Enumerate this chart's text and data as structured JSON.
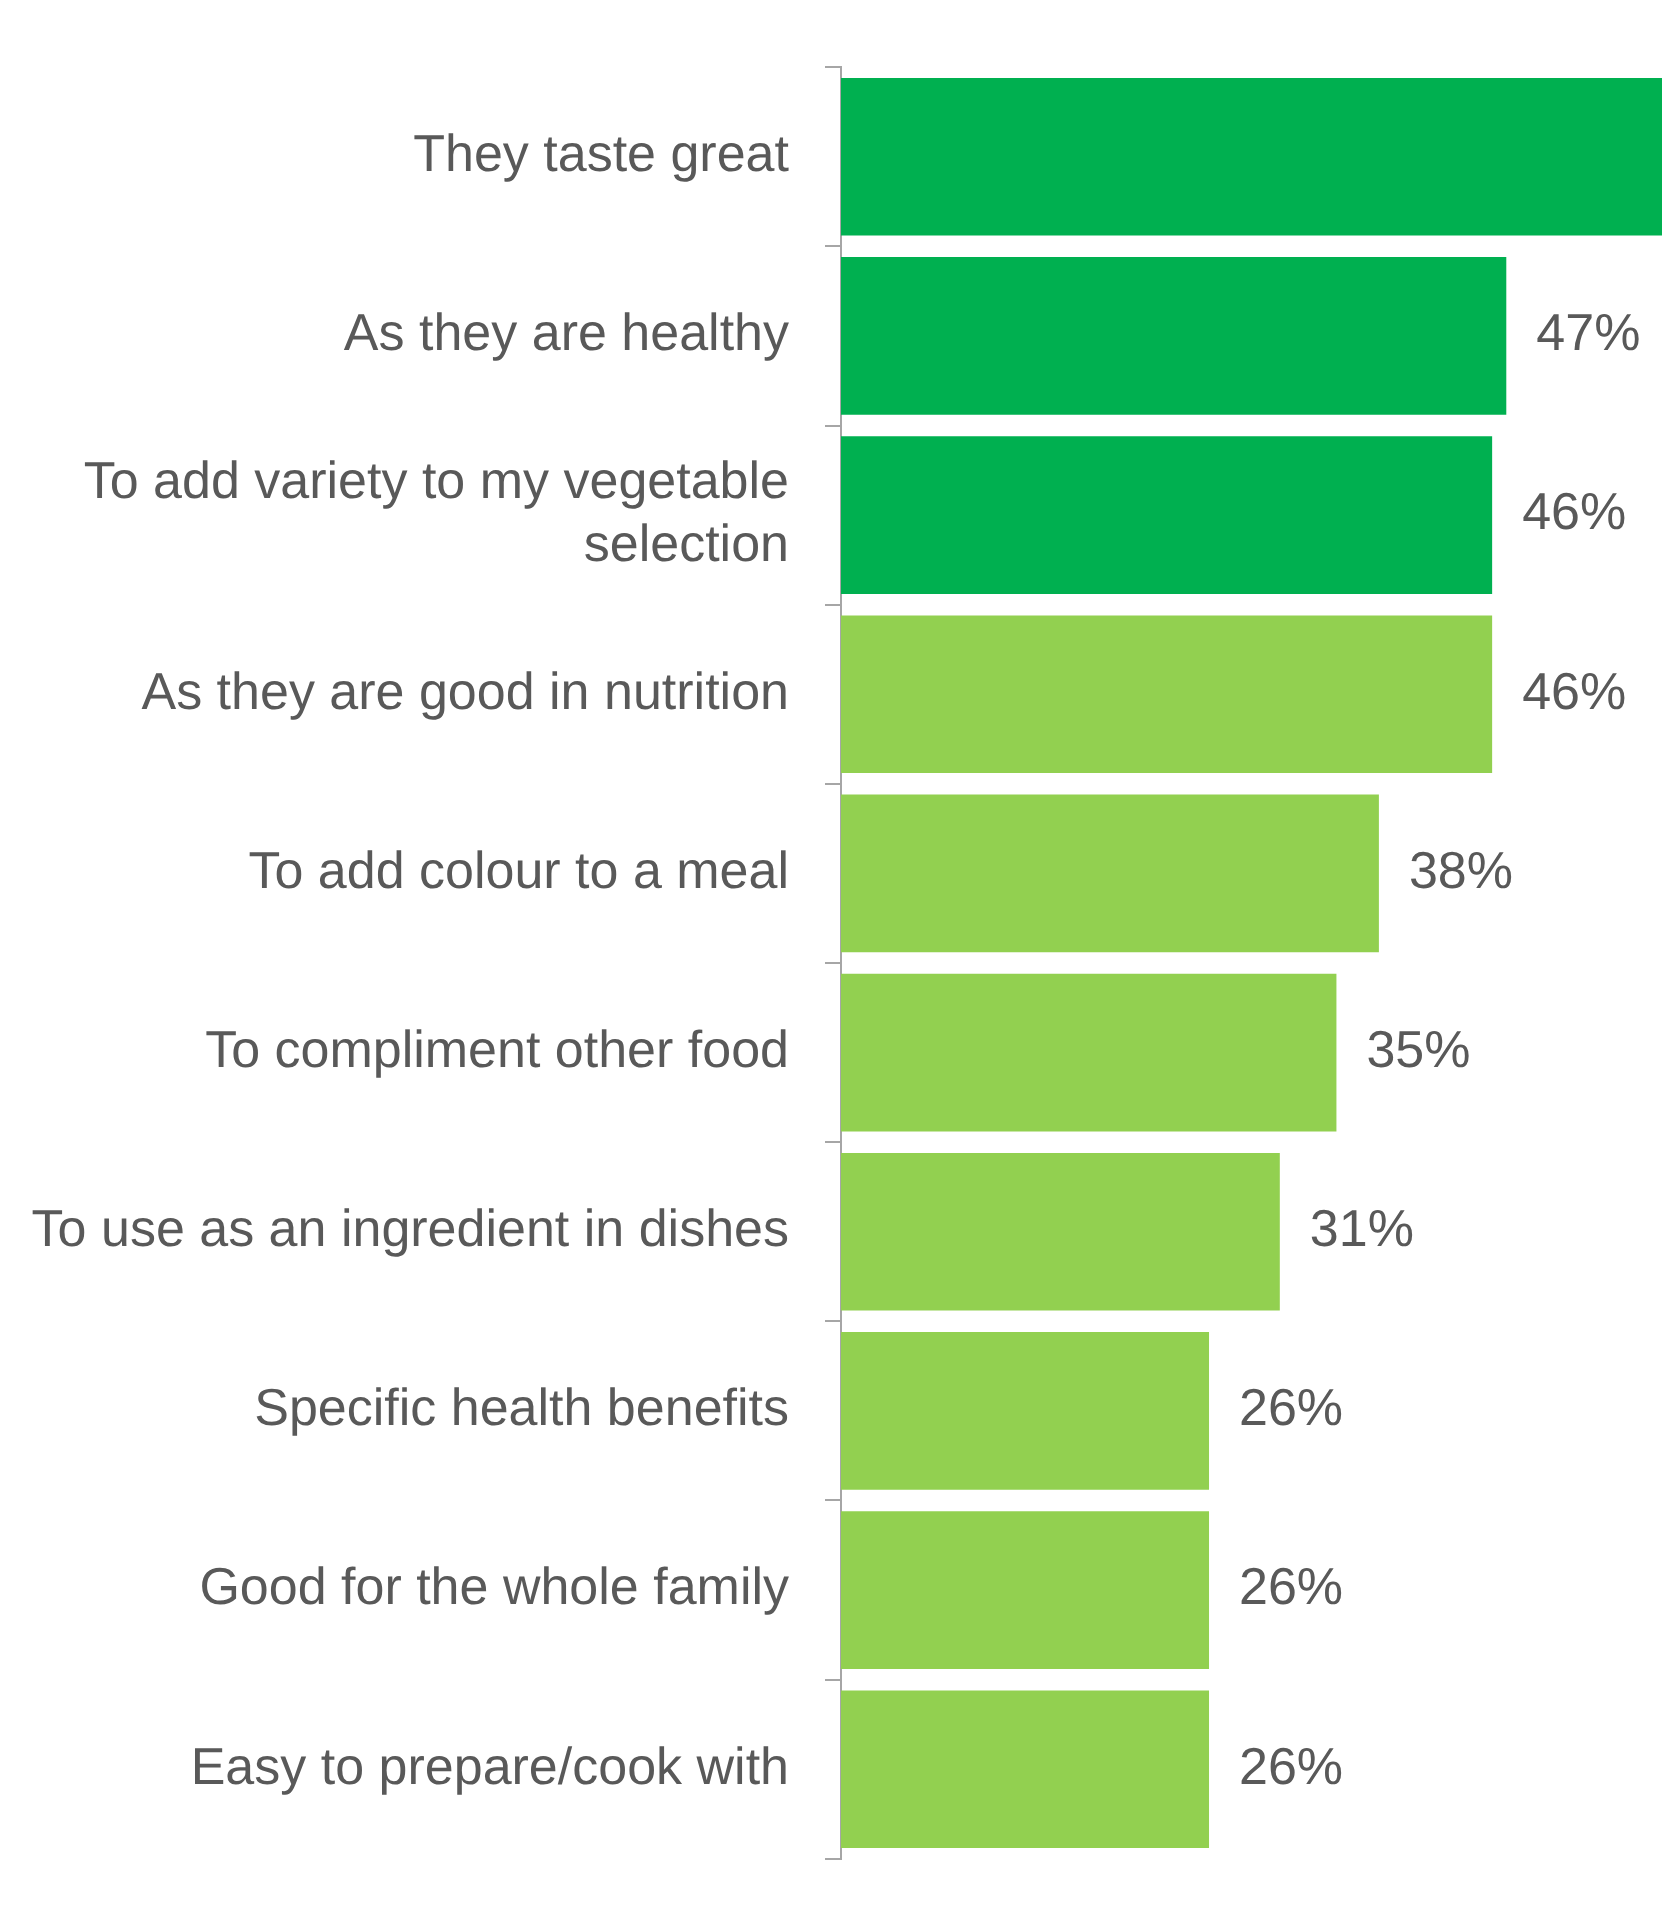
{
  "chart_data": {
    "type": "bar",
    "orientation": "horizontal",
    "categories": [
      "They taste great",
      "As they are healthy",
      "To add variety to my vegetable selection",
      "As they are good in nutrition",
      "To add colour to a meal",
      "To compliment other food",
      "To use as an ingredient in dishes",
      "Specific health benefits",
      "Good for the whole family",
      "Easy to prepare/cook with"
    ],
    "values": [
      58,
      47,
      46,
      46,
      38,
      35,
      31,
      26,
      26,
      26
    ],
    "colors": [
      "#00b050",
      "#00b050",
      "#00b050",
      "#92d050",
      "#92d050",
      "#92d050",
      "#92d050",
      "#92d050",
      "#92d050",
      "#92d050"
    ],
    "value_labels": [
      null,
      "47%",
      "46%",
      "46%",
      "38%",
      "35%",
      "31%",
      "26%",
      "26%",
      "26%"
    ],
    "xlim": [
      0,
      58
    ],
    "tick_labels": "y",
    "legend": false
  }
}
